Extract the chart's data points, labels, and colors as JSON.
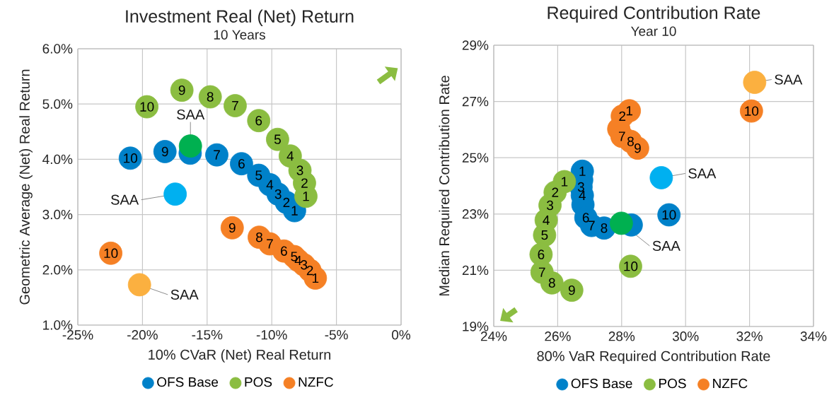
{
  "chart_data": [
    {
      "type": "scatter",
      "title": "Investment Real (Net) Return",
      "subtitle": "10 Years",
      "xlabel": "10% CVaR (Net) Real Return",
      "ylabel": "Geometric Average (Net) Real Return",
      "xlim": [
        -25,
        0
      ],
      "ylim": [
        1,
        6
      ],
      "xticks": [
        {
          "value": -25,
          "label": "-25%"
        },
        {
          "value": -20,
          "label": "-20%"
        },
        {
          "value": -15,
          "label": "-15%"
        },
        {
          "value": -10,
          "label": "-10%"
        },
        {
          "value": -5,
          "label": "-5%"
        },
        {
          "value": 0,
          "label": "0%"
        }
      ],
      "yticks": [
        {
          "value": 1,
          "label": "1.0%"
        },
        {
          "value": 2,
          "label": "2.0%"
        },
        {
          "value": 3,
          "label": "3.0%"
        },
        {
          "value": 4,
          "label": "4.0%"
        },
        {
          "value": 5,
          "label": "5.0%"
        },
        {
          "value": 6,
          "label": "6.0%"
        }
      ],
      "grid": true,
      "legend": "bottom",
      "marker": "circle",
      "series": [
        {
          "name": "OFS Base",
          "color": "#0081c9",
          "x": [
            -8.24,
            -8.87,
            -9.51,
            -10.15,
            -11.01,
            -12.34,
            -14.25,
            -16.31,
            -18.26,
            -20.94
          ],
          "values": [
            3.07,
            3.22,
            3.37,
            3.54,
            3.71,
            3.92,
            4.08,
            4.11,
            4.14,
            4.02
          ]
        },
        {
          "name": "POS",
          "color": "#8bbd41",
          "x": [
            -7.36,
            -7.47,
            -7.82,
            -8.57,
            -9.55,
            -11.01,
            -12.83,
            -14.76,
            -16.95,
            -19.66
          ],
          "values": [
            3.33,
            3.57,
            3.8,
            4.06,
            4.36,
            4.7,
            4.97,
            5.13,
            5.25,
            4.95
          ]
        },
        {
          "name": "NZFC",
          "color": "#f58025",
          "x": [
            -6.63,
            -7.05,
            -7.51,
            -7.96,
            -8.27,
            -9.06,
            -10.15,
            -10.97,
            -13.06,
            -22.45
          ],
          "values": [
            1.85,
            1.99,
            2.09,
            2.17,
            2.24,
            2.34,
            2.47,
            2.59,
            2.76,
            2.3
          ]
        },
        {
          "color": "#00b050",
          "x": [
            -16.29
          ],
          "values": [
            4.24
          ]
        },
        {
          "color": "#00b0f0",
          "x": [
            -17.47
          ],
          "values": [
            3.37
          ]
        },
        {
          "color": "#fbb040",
          "x": [
            -20.23
          ],
          "values": [
            1.73
          ]
        }
      ],
      "annotations": [
        {
          "text": "SAA",
          "x": -16.29,
          "y": 4.24
        },
        {
          "text": "SAA",
          "x": -17.47,
          "y": 3.37
        },
        {
          "text": "SAA",
          "x": -20.23,
          "y": 1.73
        },
        {
          "text": "1",
          "x": -8.24,
          "y": 3.07
        },
        {
          "text": "2",
          "x": -8.87,
          "y": 3.22
        },
        {
          "text": "3",
          "x": -9.51,
          "y": 3.37
        },
        {
          "text": "4",
          "x": -10.15,
          "y": 3.54
        },
        {
          "text": "5",
          "x": -11.01,
          "y": 3.71
        },
        {
          "text": "6",
          "x": -12.34,
          "y": 3.92
        },
        {
          "text": "7",
          "x": -14.25,
          "y": 4.08
        },
        {
          "text": "9",
          "x": -18.26,
          "y": 4.14
        },
        {
          "text": "10",
          "x": -20.94,
          "y": 4.02
        },
        {
          "text": "1",
          "x": -7.36,
          "y": 3.33
        },
        {
          "text": "2",
          "x": -7.47,
          "y": 3.57
        },
        {
          "text": "3",
          "x": -7.82,
          "y": 3.8
        },
        {
          "text": "4",
          "x": -8.57,
          "y": 4.06
        },
        {
          "text": "5",
          "x": -9.55,
          "y": 4.36
        },
        {
          "text": "6",
          "x": -11.01,
          "y": 4.7
        },
        {
          "text": "7",
          "x": -12.83,
          "y": 4.97
        },
        {
          "text": "8",
          "x": -14.76,
          "y": 5.13
        },
        {
          "text": "9",
          "x": -16.95,
          "y": 5.25
        },
        {
          "text": "10",
          "x": -19.66,
          "y": 4.95
        },
        {
          "text": "1",
          "x": -6.63,
          "y": 1.85
        },
        {
          "text": "2",
          "x": -7.05,
          "y": 1.99
        },
        {
          "text": "3",
          "x": -7.51,
          "y": 2.09
        },
        {
          "text": "4",
          "x": -7.96,
          "y": 2.17
        },
        {
          "text": "5",
          "x": -8.27,
          "y": 2.24
        },
        {
          "text": "6",
          "x": -9.06,
          "y": 2.34
        },
        {
          "text": "7",
          "x": -10.15,
          "y": 2.47
        },
        {
          "text": "8",
          "x": -10.97,
          "y": 2.59
        },
        {
          "text": "9",
          "x": -13.06,
          "y": 2.76
        },
        {
          "text": "10",
          "x": -22.45,
          "y": 2.3
        }
      ]
    },
    {
      "type": "scatter",
      "title": "Required Contribution Rate",
      "subtitle": "Year 10",
      "xlabel": "80% VaR Required Contribution Rate",
      "ylabel": "Median Required Contribution Rate",
      "xlim": [
        24,
        34
      ],
      "ylim": [
        19,
        29
      ],
      "xticks": [
        {
          "value": 24,
          "label": "24%"
        },
        {
          "value": 26,
          "label": "26%"
        },
        {
          "value": 28,
          "label": "28%"
        },
        {
          "value": 30,
          "label": "30%"
        },
        {
          "value": 32,
          "label": "32%"
        },
        {
          "value": 34,
          "label": "34%"
        }
      ],
      "yticks": [
        {
          "value": 19,
          "label": "19%"
        },
        {
          "value": 21,
          "label": "21%"
        },
        {
          "value": 23,
          "label": "23%"
        },
        {
          "value": 25,
          "label": "25%"
        },
        {
          "value": 27,
          "label": "27%"
        },
        {
          "value": 29,
          "label": "29%"
        }
      ],
      "grid": true,
      "legend": "bottom",
      "marker": "circle",
      "series": [
        {
          "name": "OFS Base",
          "color": "#0081c9",
          "x": [
            26.77,
            26.75,
            26.73,
            26.77,
            26.79,
            26.88,
            27.06,
            27.45,
            28.3,
            29.48
          ],
          "values": [
            24.52,
            24.21,
            23.96,
            23.66,
            23.33,
            22.87,
            22.59,
            22.5,
            22.61,
            22.97
          ]
        },
        {
          "name": "POS",
          "color": "#8bbd41",
          "x": [
            26.21,
            25.92,
            25.76,
            25.64,
            25.59,
            25.48,
            25.51,
            25.82,
            26.44,
            28.28
          ],
          "values": [
            24.15,
            23.77,
            23.31,
            22.78,
            22.25,
            21.56,
            20.93,
            20.55,
            20.29,
            21.14
          ]
        },
        {
          "name": "NZFC",
          "color": "#f58025",
          "x": [
            28.24,
            28.02,
            null,
            null,
            null,
            27.91,
            28.01,
            28.28,
            28.5,
            32.06
          ],
          "values": [
            26.67,
            26.48,
            null,
            null,
            null,
            26.02,
            25.76,
            25.58,
            25.34,
            26.66
          ]
        },
        {
          "color": "#fbb040",
          "x": [
            32.16
          ],
          "values": [
            27.68
          ]
        },
        {
          "color": "#00b0f0",
          "x": [
            29.24
          ],
          "values": [
            24.29
          ]
        },
        {
          "color": "#00b050",
          "x": [
            27.99
          ],
          "values": [
            22.67
          ]
        }
      ],
      "annotations": [
        {
          "text": "SAA",
          "x": 32.16,
          "y": 27.68
        },
        {
          "text": "SAA",
          "x": 29.24,
          "y": 24.29
        },
        {
          "text": "SAA",
          "x": 27.99,
          "y": 22.67
        },
        {
          "text": "1",
          "x": 26.77,
          "y": 24.52
        },
        {
          "text": "3",
          "x": 26.73,
          "y": 23.96
        },
        {
          "text": "4",
          "x": 26.77,
          "y": 23.66
        },
        {
          "text": "6",
          "x": 26.88,
          "y": 22.87
        },
        {
          "text": "7",
          "x": 27.06,
          "y": 22.59
        },
        {
          "text": "8",
          "x": 27.45,
          "y": 22.5
        },
        {
          "text": "10",
          "x": 29.48,
          "y": 22.97
        },
        {
          "text": "1",
          "x": 26.21,
          "y": 24.15
        },
        {
          "text": "2",
          "x": 25.92,
          "y": 23.77
        },
        {
          "text": "3",
          "x": 25.76,
          "y": 23.31
        },
        {
          "text": "4",
          "x": 25.64,
          "y": 22.78
        },
        {
          "text": "5",
          "x": 25.59,
          "y": 22.25
        },
        {
          "text": "6",
          "x": 25.48,
          "y": 21.56
        },
        {
          "text": "7",
          "x": 25.51,
          "y": 20.93
        },
        {
          "text": "8",
          "x": 25.82,
          "y": 20.55
        },
        {
          "text": "9",
          "x": 26.44,
          "y": 20.29
        },
        {
          "text": "10",
          "x": 28.28,
          "y": 21.14
        },
        {
          "text": "1",
          "x": 28.24,
          "y": 26.67
        },
        {
          "text": "2",
          "x": 28.02,
          "y": 26.48
        },
        {
          "text": "7",
          "x": 28.01,
          "y": 25.76
        },
        {
          "text": "8",
          "x": 28.28,
          "y": 25.58
        },
        {
          "text": "9",
          "x": 28.5,
          "y": 25.34
        },
        {
          "text": "10",
          "x": 32.06,
          "y": 26.66
        }
      ]
    }
  ]
}
